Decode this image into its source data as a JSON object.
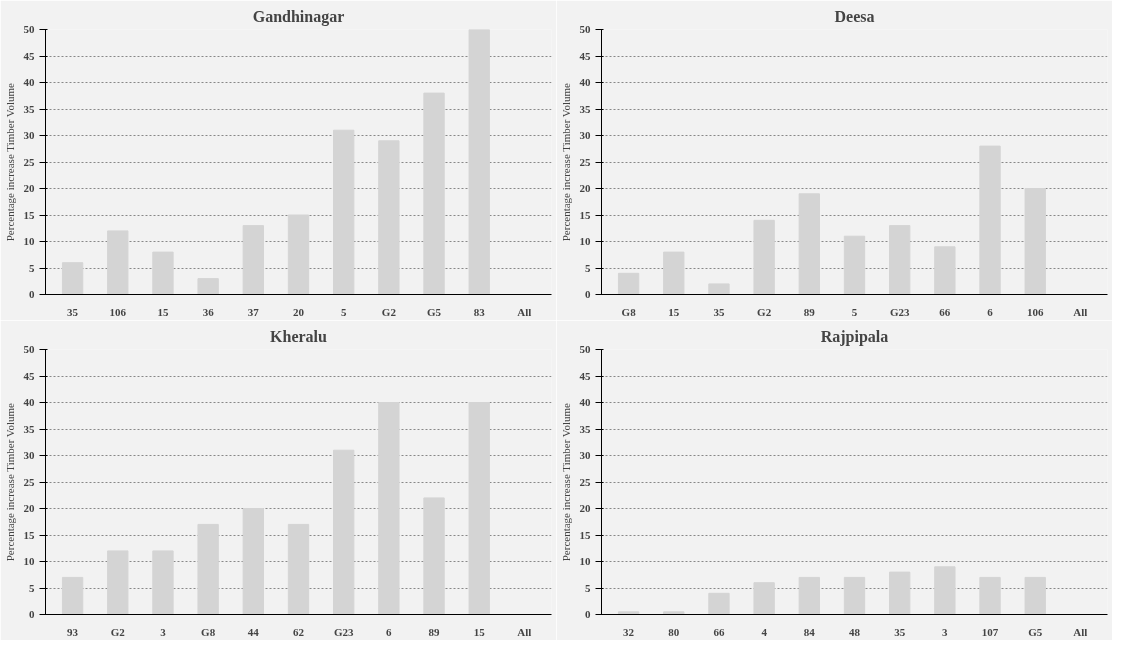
{
  "chart_data": [
    {
      "type": "bar",
      "title": "Gandhinagar",
      "ylabel": "Percentage increase Timber Volume",
      "categories": [
        "35",
        "106",
        "15",
        "36",
        "37",
        "20",
        "5",
        "G2",
        "G5",
        "83",
        "All"
      ],
      "values": [
        6,
        12,
        8,
        3,
        13,
        15,
        31,
        29,
        38,
        50,
        0
      ],
      "color": "#d4d4d4",
      "ylim": [
        0,
        50
      ],
      "yticks": [
        0,
        5,
        10,
        15,
        20,
        25,
        30,
        35,
        40,
        45,
        50
      ],
      "grid": "y"
    },
    {
      "type": "bar",
      "title": "Deesa",
      "ylabel": "Percentage increase Timber Volume",
      "categories": [
        "G8",
        "15",
        "35",
        "G2",
        "89",
        "5",
        "G23",
        "66",
        "6",
        "106",
        "All"
      ],
      "values": [
        4,
        8,
        2,
        14,
        19,
        11,
        13,
        9,
        28,
        20,
        0
      ],
      "color": "#d4d4d4",
      "ylim": [
        0,
        50
      ],
      "yticks": [
        0,
        5,
        10,
        15,
        20,
        25,
        30,
        35,
        40,
        45,
        50
      ],
      "grid": "y"
    },
    {
      "type": "bar",
      "title": "Kheralu",
      "ylabel": "Percentage increase Timber Volume",
      "categories": [
        "93",
        "G2",
        "3",
        "G8",
        "44",
        "62",
        "G23",
        "6",
        "89",
        "15",
        "All"
      ],
      "values": [
        7,
        12,
        12,
        17,
        20,
        17,
        31,
        40,
        22,
        40,
        0
      ],
      "color": "#d4d4d4",
      "ylim": [
        0,
        50
      ],
      "yticks": [
        0,
        5,
        10,
        15,
        20,
        25,
        30,
        35,
        40,
        45,
        50
      ],
      "grid": "y"
    },
    {
      "type": "bar",
      "title": "Rajpipala",
      "ylabel": "Percentage increase Timber Volume",
      "categories": [
        "32",
        "80",
        "66",
        "4",
        "84",
        "48",
        "35",
        "3",
        "107",
        "G5",
        "All"
      ],
      "values": [
        0.5,
        0.5,
        4,
        6,
        7,
        7,
        8,
        9,
        7,
        7,
        0
      ],
      "color": "#d4d4d4",
      "ylim": [
        0,
        50
      ],
      "yticks": [
        0,
        5,
        10,
        15,
        20,
        25,
        30,
        35,
        40,
        45,
        50
      ],
      "grid": "y"
    }
  ]
}
